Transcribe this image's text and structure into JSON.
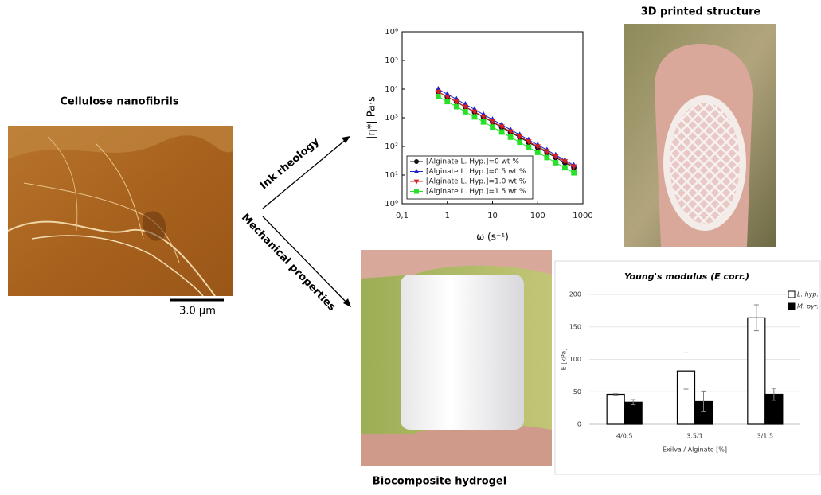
{
  "labels": {
    "afm_title": "Cellulose nanofibrils",
    "scale_bar": "3.0 µm",
    "arrow_rheology": "Ink rheology",
    "arrow_mechanical": "Mechanical properties",
    "printed_title": "3D printed structure",
    "hydrogel_title": "Biocomposite hydrogel"
  },
  "chart_data": [
    {
      "type": "line",
      "xlabel": "ω (s⁻¹)",
      "ylabel": "|η*| Pa·s",
      "log_x": true,
      "log_y": true,
      "x": [
        0.63,
        1,
        1.6,
        2.5,
        4,
        6.3,
        10,
        16,
        25,
        40,
        63,
        100,
        160,
        250,
        400,
        630
      ],
      "series": [
        {
          "name": "[Alginate L. Hyp.]=0 wt %",
          "color": "#111111",
          "marker": "circle",
          "values": [
            8000,
            5330,
            3550,
            2360,
            1570,
            1050,
            700,
            466,
            310,
            207,
            138,
            92,
            61,
            41,
            27,
            18
          ]
        },
        {
          "name": "[Alginate L. Hyp.]=0.5 wt %",
          "color": "#2323c8",
          "marker": "triangle-up",
          "values": [
            10000,
            6650,
            4420,
            2940,
            1960,
            1300,
            865,
            575,
            383,
            255,
            169,
            113,
            75,
            50,
            33,
            22
          ]
        },
        {
          "name": "[Alginate L. Hyp.]=1.0 wt %",
          "color": "#d42020",
          "marker": "triangle-down",
          "values": [
            8000,
            5370,
            3600,
            2420,
            1620,
            1090,
            731,
            490,
            329,
            221,
            148,
            99,
            67,
            45,
            30,
            20
          ]
        },
        {
          "name": "[Alginate L. Hyp.]=1.5 wt %",
          "color": "#28e028",
          "marker": "square",
          "values": [
            5500,
            3660,
            2430,
            1620,
            1070,
            715,
            475,
            316,
            210,
            140,
            93,
            62,
            41,
            27,
            18,
            12
          ]
        }
      ],
      "xlim": [
        0.1,
        1000
      ],
      "ylim": [
        1,
        1000000
      ],
      "xticks": [
        {
          "value": 0.1,
          "label": "0,1"
        },
        1,
        10,
        100,
        1000
      ],
      "yticks": [
        {
          "value": 1,
          "label": "10⁰"
        },
        {
          "value": 10,
          "label": "10¹"
        },
        {
          "value": 100,
          "label": "10²"
        },
        {
          "value": 1000,
          "label": "10³"
        },
        {
          "value": 10000,
          "label": "10⁴"
        },
        {
          "value": 100000,
          "label": "10⁵"
        },
        {
          "value": 1000000,
          "label": "10⁶"
        }
      ],
      "legend": "lower left"
    },
    {
      "type": "bar",
      "title": "Young's modulus (E corr.)",
      "xlabel": "Exilva / Alginate [%]",
      "ylabel": "E [kPa]",
      "categories": [
        "4/0.5",
        "3.5/1",
        "3/1.5"
      ],
      "series": [
        {
          "name": "L. hyp.",
          "color": "#ffffff",
          "values": [
            46,
            82,
            164
          ],
          "errors": [
            1,
            28,
            20
          ]
        },
        {
          "name": "M. pyr.",
          "color": "#000000",
          "values": [
            34,
            35,
            46
          ],
          "errors": [
            4,
            16,
            9
          ]
        }
      ],
      "ylim": [
        0,
        200
      ],
      "yticks": [
        0,
        50,
        100,
        150,
        200
      ],
      "grid": true,
      "legend": "upper right"
    }
  ]
}
